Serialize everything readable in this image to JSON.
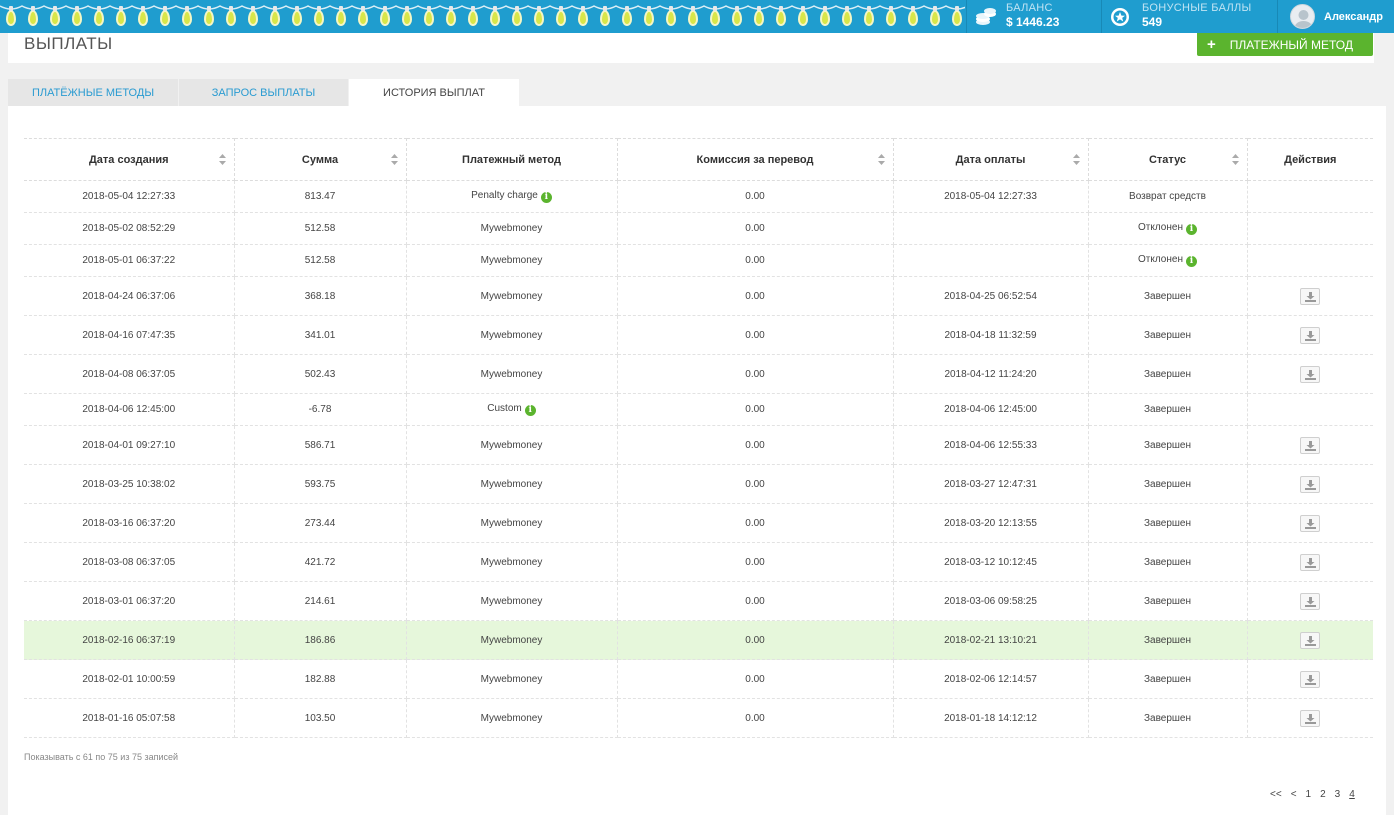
{
  "topbar": {
    "balance_label": "БАЛАНС",
    "balance_value": "$ 1446.23",
    "bonus_label": "БОНУСНЫЕ БАЛЛЫ",
    "bonus_value": "549",
    "username": "Александр",
    "colors": {
      "bar": "#1f9dcf",
      "bulb": "#d8e64a"
    }
  },
  "header": {
    "title": "ВЫПЛАТЫ",
    "add_method_plus": "+",
    "add_method_label": "ПЛАТЕЖНЫЙ МЕТОД",
    "accent": "#5bb42e"
  },
  "tabs": [
    {
      "label": "ПЛАТЁЖНЫЕ МЕТОДЫ",
      "active": false
    },
    {
      "label": "ЗАПРОС ВЫПЛАТЫ",
      "active": false
    },
    {
      "label": "ИСТОРИЯ ВЫПЛАТ",
      "active": true
    }
  ],
  "table": {
    "headers": [
      "Дата создания",
      "Сумма",
      "Платежный метод",
      "Комиссия за перевод",
      "Дата оплаты",
      "Статус",
      "Действия"
    ],
    "rows": [
      {
        "created": "2018-05-04 12:27:33",
        "amount": "813.47",
        "method": "Penalty charge",
        "method_info": true,
        "fee": "0.00",
        "paid": "2018-05-04 12:27:33",
        "status": "Возврат средств",
        "status_info": false,
        "download": false
      },
      {
        "created": "2018-05-02 08:52:29",
        "amount": "512.58",
        "method": "Mywebmoney",
        "method_info": false,
        "fee": "0.00",
        "paid": "",
        "status": "Отклонен",
        "status_info": true,
        "download": false
      },
      {
        "created": "2018-05-01 06:37:22",
        "amount": "512.58",
        "method": "Mywebmoney",
        "method_info": false,
        "fee": "0.00",
        "paid": "",
        "status": "Отклонен",
        "status_info": true,
        "download": false
      },
      {
        "created": "2018-04-24 06:37:06",
        "amount": "368.18",
        "method": "Mywebmoney",
        "method_info": false,
        "fee": "0.00",
        "paid": "2018-04-25 06:52:54",
        "status": "Завершен",
        "status_info": false,
        "download": true
      },
      {
        "created": "2018-04-16 07:47:35",
        "amount": "341.01",
        "method": "Mywebmoney",
        "method_info": false,
        "fee": "0.00",
        "paid": "2018-04-18 11:32:59",
        "status": "Завершен",
        "status_info": false,
        "download": true
      },
      {
        "created": "2018-04-08 06:37:05",
        "amount": "502.43",
        "method": "Mywebmoney",
        "method_info": false,
        "fee": "0.00",
        "paid": "2018-04-12 11:24:20",
        "status": "Завершен",
        "status_info": false,
        "download": true
      },
      {
        "created": "2018-04-06 12:45:00",
        "amount": "-6.78",
        "method": "Custom",
        "method_info": true,
        "fee": "0.00",
        "paid": "2018-04-06 12:45:00",
        "status": "Завершен",
        "status_info": false,
        "download": false
      },
      {
        "created": "2018-04-01 09:27:10",
        "amount": "586.71",
        "method": "Mywebmoney",
        "method_info": false,
        "fee": "0.00",
        "paid": "2018-04-06 12:55:33",
        "status": "Завершен",
        "status_info": false,
        "download": true
      },
      {
        "created": "2018-03-25 10:38:02",
        "amount": "593.75",
        "method": "Mywebmoney",
        "method_info": false,
        "fee": "0.00",
        "paid": "2018-03-27 12:47:31",
        "status": "Завершен",
        "status_info": false,
        "download": true
      },
      {
        "created": "2018-03-16 06:37:20",
        "amount": "273.44",
        "method": "Mywebmoney",
        "method_info": false,
        "fee": "0.00",
        "paid": "2018-03-20 12:13:55",
        "status": "Завершен",
        "status_info": false,
        "download": true
      },
      {
        "created": "2018-03-08 06:37:05",
        "amount": "421.72",
        "method": "Mywebmoney",
        "method_info": false,
        "fee": "0.00",
        "paid": "2018-03-12 10:12:45",
        "status": "Завершен",
        "status_info": false,
        "download": true
      },
      {
        "created": "2018-03-01 06:37:20",
        "amount": "214.61",
        "method": "Mywebmoney",
        "method_info": false,
        "fee": "0.00",
        "paid": "2018-03-06 09:58:25",
        "status": "Завершен",
        "status_info": false,
        "download": true
      },
      {
        "created": "2018-02-16 06:37:19",
        "amount": "186.86",
        "method": "Mywebmoney",
        "method_info": false,
        "fee": "0.00",
        "paid": "2018-02-21 13:10:21",
        "status": "Завершен",
        "status_info": false,
        "download": true,
        "highlight": true
      },
      {
        "created": "2018-02-01 10:00:59",
        "amount": "182.88",
        "method": "Mywebmoney",
        "method_info": false,
        "fee": "0.00",
        "paid": "2018-02-06 12:14:57",
        "status": "Завершен",
        "status_info": false,
        "download": true
      },
      {
        "created": "2018-01-16 05:07:58",
        "amount": "103.50",
        "method": "Mywebmoney",
        "method_info": false,
        "fee": "0.00",
        "paid": "2018-01-18 14:12:12",
        "status": "Завершен",
        "status_info": false,
        "download": true
      }
    ],
    "info_glyph": "i",
    "highlight_color": "#e6f7db"
  },
  "footer": {
    "records_info": "Показывать с 61 по 75 из 75 записей",
    "pager": [
      "<<",
      "<",
      "1",
      "2",
      "3",
      "4"
    ],
    "current_page": "4"
  }
}
